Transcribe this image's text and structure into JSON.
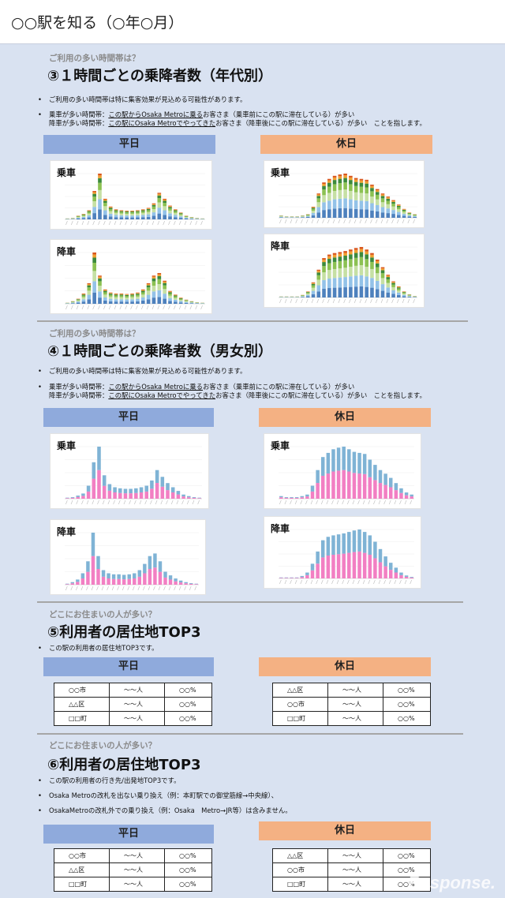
{
  "header": {
    "title": "○○駅を知る（○年○月）"
  },
  "colors": {
    "weekday": "#8faadc",
    "holiday": "#f4b183",
    "male": "#7fb3d5",
    "female": "#f27fc3",
    "age_series": [
      "#4e81bd",
      "#93c2e8",
      "#c6e0a4",
      "#8cc152",
      "#3c8a3c",
      "#f0a030",
      "#d9561d"
    ]
  },
  "sec3": {
    "kicker": "ご利用の多い時間帯は？",
    "title": "③１時間ごとの乗降者数（年代別）",
    "bullet1": "ご利用の多い時間帯は特に集客効果が見込める可能性があります。",
    "b2_l1_pre": "乗車が多い時間帯：",
    "b2_l1_ul": "この駅からOsaka Metroに乗る",
    "b2_l1_post": "お客さま（乗車前にこの駅に滞在している）が多い",
    "b2_l2_pre": "降車が多い時間帯：",
    "b2_l2_ul": "この駅にOsaka Metroでやってきた",
    "b2_l2_post": "お客さま（降車後にこの駅に滞在している）が多い　ことを指します。",
    "weekday": "平日",
    "holiday": "休日",
    "board": "乗車",
    "alight": "降車"
  },
  "sec4": {
    "kicker": "ご利用の多い時間帯は？",
    "title": "④１時間ごとの乗降者数（男女別）",
    "bullet1": "ご利用の多い時間帯は特に集客効果が見込める可能性があります。",
    "b2_l1_pre": "乗車が多い時間帯：",
    "b2_l1_ul": "この駅からOsaka Metroに乗る",
    "b2_l1_post": "お客さま（乗車前にこの駅に滞在している）が多い",
    "b2_l2_pre": "降車が多い時間帯：",
    "b2_l2_ul": "この駅にOsaka Metroでやってきた",
    "b2_l2_post": "お客さま（降車後にこの駅に滞在している）が多い　ことを指します。",
    "weekday": "平日",
    "holiday": "休日",
    "board": "乗車",
    "alight": "降車"
  },
  "sec5": {
    "kicker": "どこにお住まいの人が多い？",
    "title": "⑤利用者の居住地TOP3",
    "bullet1": "この駅の利用者の居住地TOP3です。",
    "weekday": "平日",
    "holiday": "休日",
    "weekday_rows": [
      [
        "○○市",
        "～～人",
        "○○%"
      ],
      [
        "△△区",
        "～～人",
        "○○%"
      ],
      [
        "□□町",
        "～～人",
        "○○%"
      ]
    ],
    "holiday_rows": [
      [
        "△△区",
        "～～人",
        "○○%"
      ],
      [
        "○○市",
        "～～人",
        "○○%"
      ],
      [
        "□□町",
        "～～人",
        "○○%"
      ]
    ]
  },
  "sec6": {
    "kicker": "どこにお住まいの人が多い？",
    "title": "⑥利用者の居住地TOP3",
    "bullet1": "この駅の利用者の行き先/出発地TOP3です。",
    "bullet2": "Osaka Metroの改札を出ない乗り換え（例：本町駅での御堂筋線→中央線）、",
    "bullet3": "OsakaMetroの改札外での乗り換え（例：Osaka　Metro→JR等）は含みません。",
    "weekday": "平日",
    "holiday": "休日",
    "weekday_rows": [
      [
        "○○市",
        "～～人",
        "○○%"
      ],
      [
        "△△区",
        "～～人",
        "○○%"
      ],
      [
        "□□町",
        "～～人",
        "○○%"
      ]
    ],
    "holiday_rows": [
      [
        "△△区",
        "～～人",
        "○○%"
      ],
      [
        "○○市",
        "～～人",
        "○○%"
      ],
      [
        "□□町",
        "～～人",
        "○○%"
      ]
    ]
  },
  "watermark": "Response.",
  "chart_data": [
    {
      "id": "age-weekday-board",
      "type": "bar",
      "stacked": true,
      "title": "乗車",
      "totals": [
        2,
        3,
        8,
        12,
        20,
        62,
        100,
        45,
        28,
        22,
        20,
        19,
        19,
        20,
        22,
        25,
        35,
        58,
        45,
        30,
        22,
        15,
        8,
        5,
        3,
        2
      ]
    },
    {
      "id": "age-weekday-alight",
      "type": "bar",
      "stacked": true,
      "title": "降車",
      "totals": [
        2,
        5,
        10,
        20,
        40,
        100,
        55,
        28,
        22,
        20,
        20,
        19,
        20,
        22,
        28,
        40,
        55,
        60,
        45,
        25,
        18,
        12,
        8,
        5,
        3,
        2
      ]
    },
    {
      "id": "age-holiday-board",
      "type": "bar",
      "stacked": true,
      "title": "乗車",
      "totals": [
        5,
        3,
        3,
        3,
        5,
        8,
        25,
        55,
        80,
        88,
        95,
        98,
        100,
        95,
        90,
        88,
        86,
        75,
        65,
        55,
        48,
        40,
        30,
        20,
        12,
        8
      ]
    },
    {
      "id": "age-holiday-alight",
      "type": "bar",
      "stacked": true,
      "title": "降車",
      "totals": [
        2,
        2,
        2,
        2,
        5,
        12,
        30,
        55,
        78,
        85,
        88,
        90,
        92,
        95,
        98,
        100,
        95,
        88,
        75,
        60,
        45,
        32,
        22,
        12,
        6,
        3
      ]
    },
    {
      "id": "sex-weekday-board",
      "type": "bar",
      "stacked": true,
      "title": "乗車",
      "totals": [
        2,
        3,
        6,
        10,
        25,
        70,
        100,
        45,
        28,
        22,
        20,
        19,
        19,
        20,
        22,
        25,
        35,
        55,
        42,
        30,
        22,
        15,
        8,
        5,
        3,
        2
      ]
    },
    {
      "id": "sex-weekday-alight",
      "type": "bar",
      "stacked": true,
      "title": "降車",
      "totals": [
        2,
        5,
        10,
        22,
        45,
        100,
        55,
        28,
        22,
        20,
        20,
        19,
        20,
        22,
        28,
        40,
        55,
        60,
        45,
        25,
        18,
        12,
        8,
        5,
        3,
        2
      ]
    },
    {
      "id": "sex-holiday-board",
      "type": "bar",
      "stacked": true,
      "title": "乗車",
      "totals": [
        5,
        3,
        3,
        3,
        5,
        8,
        25,
        55,
        80,
        88,
        95,
        98,
        100,
        95,
        90,
        88,
        86,
        75,
        65,
        55,
        48,
        40,
        30,
        20,
        12,
        8
      ]
    },
    {
      "id": "sex-holiday-alight",
      "type": "bar",
      "stacked": true,
      "title": "降車",
      "totals": [
        2,
        2,
        2,
        2,
        5,
        12,
        30,
        55,
        78,
        85,
        88,
        90,
        92,
        95,
        98,
        100,
        95,
        88,
        75,
        60,
        45,
        32,
        22,
        12,
        6,
        3
      ]
    }
  ]
}
